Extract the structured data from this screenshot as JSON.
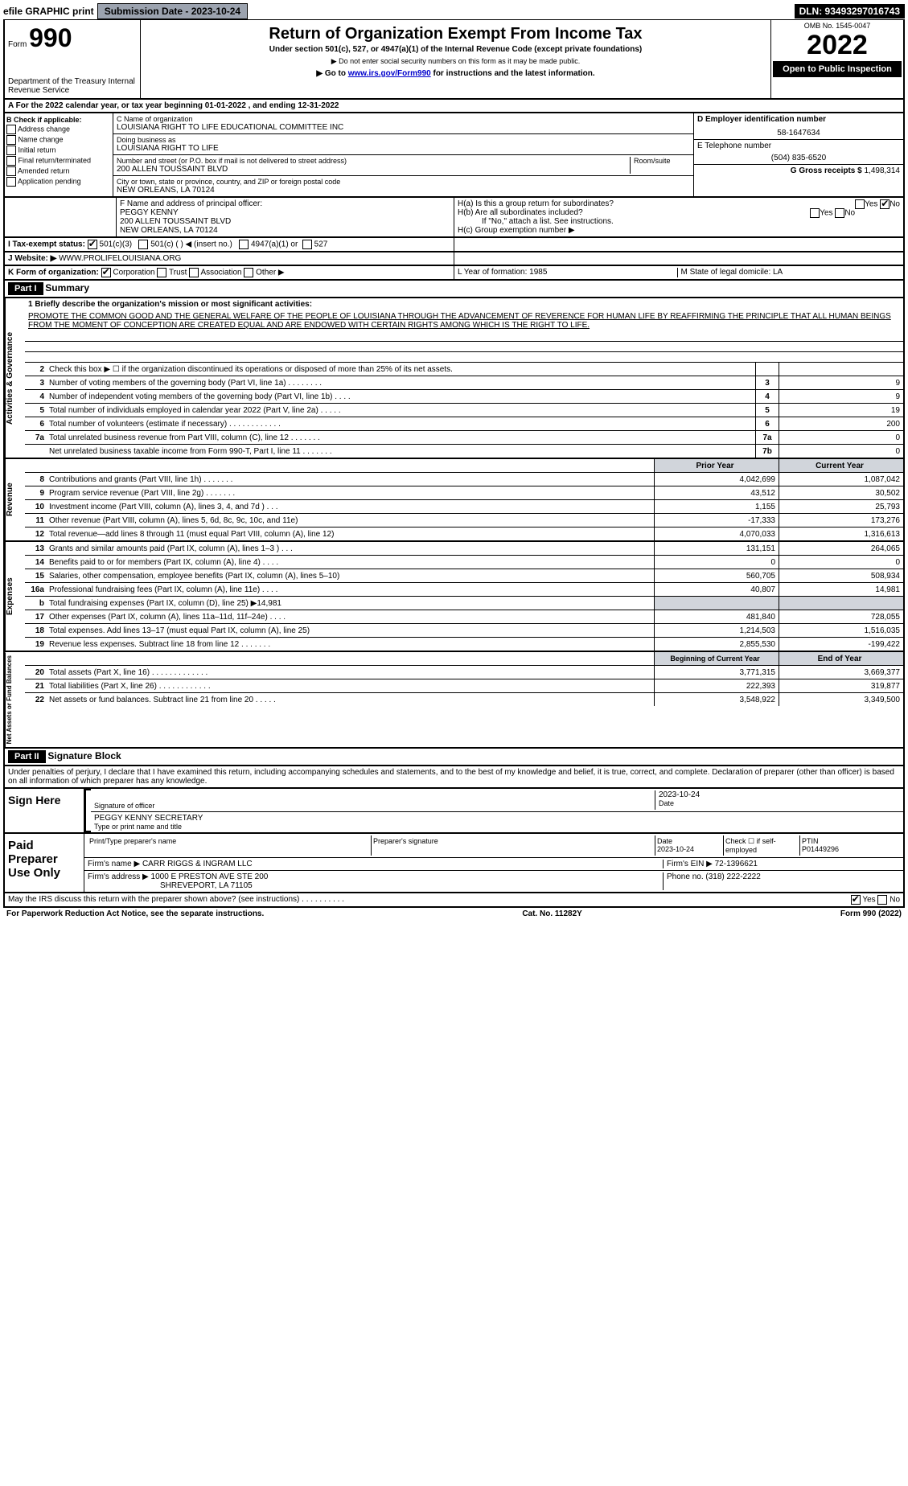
{
  "top": {
    "efile": "efile GRAPHIC print",
    "submission": "Submission Date - 2023-10-24",
    "dln": "DLN: 93493297016743"
  },
  "header": {
    "form": "Form",
    "form_num": "990",
    "dept": "Department of the Treasury Internal Revenue Service",
    "title": "Return of Organization Exempt From Income Tax",
    "subtitle": "Under section 501(c), 527, or 4947(a)(1) of the Internal Revenue Code (except private foundations)",
    "note1": "▶ Do not enter social security numbers on this form as it may be made public.",
    "note2_prefix": "▶ Go to ",
    "note2_link": "www.irs.gov/Form990",
    "note2_suffix": " for instructions and the latest information.",
    "omb": "OMB No. 1545-0047",
    "year": "2022",
    "open": "Open to Public Inspection"
  },
  "row_a": "A For the 2022 calendar year, or tax year beginning 01-01-2022   , and ending 12-31-2022",
  "col_b": {
    "title": "B Check if applicable:",
    "items": [
      "Address change",
      "Name change",
      "Initial return",
      "Final return/terminated",
      "Amended return",
      "Application pending"
    ]
  },
  "col_c": {
    "name_label": "C Name of organization",
    "name": "LOUISIANA RIGHT TO LIFE EDUCATIONAL COMMITTEE INC",
    "dba_label": "Doing business as",
    "dba": "LOUISIANA RIGHT TO LIFE",
    "addr_label": "Number and street (or P.O. box if mail is not delivered to street address)",
    "room_label": "Room/suite",
    "addr": "200 ALLEN TOUSSAINT BLVD",
    "city_label": "City or town, state or province, country, and ZIP or foreign postal code",
    "city": "NEW ORLEANS, LA  70124",
    "officer_label": "F  Name and address of principal officer:",
    "officer": "PEGGY KENNY\n200 ALLEN TOUSSAINT BLVD\nNEW ORLEANS, LA  70124"
  },
  "col_d": {
    "ein_label": "D Employer identification number",
    "ein": "58-1647634",
    "phone_label": "E Telephone number",
    "phone": "(504) 835-6520",
    "gross_label": "G Gross receipts $",
    "gross": "1,498,314"
  },
  "h": {
    "ha": "H(a)  Is this a group return for subordinates?",
    "hb": "H(b)  Are all subordinates included?",
    "hb_note": "If \"No,\" attach a list. See instructions.",
    "hc": "H(c)  Group exemption number ▶"
  },
  "i": {
    "label": "I   Tax-exempt status:",
    "opt1": "501(c)(3)",
    "opt2": "501(c) (  ) ◀ (insert no.)",
    "opt3": "4947(a)(1) or",
    "opt4": "527"
  },
  "j": {
    "label": "J   Website: ▶",
    "val": "WWW.PROLIFELOUISIANA.ORG"
  },
  "k": {
    "label": "K Form of organization:",
    "opts": [
      "Corporation",
      "Trust",
      "Association",
      "Other ▶"
    ],
    "l": "L Year of formation: 1985",
    "m": "M State of legal domicile: LA"
  },
  "part1": {
    "header": "Part I",
    "title": "Summary"
  },
  "mission": {
    "label": "1  Briefly describe the organization's mission or most significant activities:",
    "text": "PROMOTE THE COMMON GOOD AND THE GENERAL WELFARE OF THE PEOPLE OF LOUISIANA THROUGH THE ADVANCEMENT OF REVERENCE FOR HUMAN LIFE BY REAFFIRMING THE PRINCIPLE THAT ALL HUMAN BEINGS FROM THE MOMENT OF CONCEPTION ARE CREATED EQUAL AND ARE ENDOWED WITH CERTAIN RIGHTS AMONG WHICH IS THE RIGHT TO LIFE."
  },
  "sections": {
    "gov": {
      "label": "Activities & Governance",
      "lines": [
        {
          "n": "2",
          "d": "Check this box ▶ ☐  if the organization discontinued its operations or disposed of more than 25% of its net assets.",
          "box": "",
          "v": ""
        },
        {
          "n": "3",
          "d": "Number of voting members of the governing body (Part VI, line 1a)  .    .    .    .    .    .    .    .",
          "box": "3",
          "v": "9"
        },
        {
          "n": "4",
          "d": "Number of independent voting members of the governing body (Part VI, line 1b)   .    .    .    .",
          "box": "4",
          "v": "9"
        },
        {
          "n": "5",
          "d": "Total number of individuals employed in calendar year 2022 (Part V, line 2a)  .    .    .    .    .",
          "box": "5",
          "v": "19"
        },
        {
          "n": "6",
          "d": "Total number of volunteers (estimate if necessary)   .    .    .    .    .    .    .    .    .    .    .    .",
          "box": "6",
          "v": "200"
        },
        {
          "n": "7a",
          "d": "Total unrelated business revenue from Part VIII, column (C), line 12   .    .    .    .    .    .    .",
          "box": "7a",
          "v": "0"
        },
        {
          "n": "",
          "d": "Net unrelated business taxable income from Form 990-T, Part I, line 11   .    .    .    .    .    .    .",
          "box": "7b",
          "v": "0"
        }
      ]
    },
    "rev": {
      "label": "Revenue",
      "head_prior": "Prior Year",
      "head_curr": "Current Year",
      "lines": [
        {
          "n": "8",
          "d": "Contributions and grants (Part VIII, line 1h)   .    .    .    .    .    .    .",
          "p": "4,042,699",
          "c": "1,087,042"
        },
        {
          "n": "9",
          "d": "Program service revenue (Part VIII, line 2g)   .    .    .    .    .    .    .",
          "p": "43,512",
          "c": "30,502"
        },
        {
          "n": "10",
          "d": "Investment income (Part VIII, column (A), lines 3, 4, and 7d )   .    .    .",
          "p": "1,155",
          "c": "25,793"
        },
        {
          "n": "11",
          "d": "Other revenue (Part VIII, column (A), lines 5, 6d, 8c, 9c, 10c, and 11e)",
          "p": "-17,333",
          "c": "173,276"
        },
        {
          "n": "12",
          "d": "Total revenue—add lines 8 through 11 (must equal Part VIII, column (A), line 12)",
          "p": "4,070,033",
          "c": "1,316,613"
        }
      ]
    },
    "exp": {
      "label": "Expenses",
      "lines": [
        {
          "n": "13",
          "d": "Grants and similar amounts paid (Part IX, column (A), lines 1–3 )   .    .    .",
          "p": "131,151",
          "c": "264,065"
        },
        {
          "n": "14",
          "d": "Benefits paid to or for members (Part IX, column (A), line 4)   .    .    .    .",
          "p": "0",
          "c": "0"
        },
        {
          "n": "15",
          "d": "Salaries, other compensation, employee benefits (Part IX, column (A), lines 5–10)",
          "p": "560,705",
          "c": "508,934"
        },
        {
          "n": "16a",
          "d": "Professional fundraising fees (Part IX, column (A), line 11e)   .    .    .    .",
          "p": "40,807",
          "c": "14,981"
        },
        {
          "n": "b",
          "d": "Total fundraising expenses (Part IX, column (D), line 25) ▶14,981",
          "p": "",
          "c": "",
          "shade": true
        },
        {
          "n": "17",
          "d": "Other expenses (Part IX, column (A), lines 11a–11d, 11f–24e)   .    .    .    .",
          "p": "481,840",
          "c": "728,055"
        },
        {
          "n": "18",
          "d": "Total expenses. Add lines 13–17 (must equal Part IX, column (A), line 25)",
          "p": "1,214,503",
          "c": "1,516,035"
        },
        {
          "n": "19",
          "d": "Revenue less expenses. Subtract line 18 from line 12   .    .    .    .    .    .    .",
          "p": "2,855,530",
          "c": "-199,422"
        }
      ]
    },
    "net": {
      "label": "Net Assets or Fund Balances",
      "head_prior": "Beginning of Current Year",
      "head_curr": "End of Year",
      "lines": [
        {
          "n": "20",
          "d": "Total assets (Part X, line 16)   .    .    .    .    .    .    .    .    .    .    .    .    .",
          "p": "3,771,315",
          "c": "3,669,377"
        },
        {
          "n": "21",
          "d": "Total liabilities (Part X, line 26)   .    .    .    .    .    .    .    .    .    .    .    .",
          "p": "222,393",
          "c": "319,877"
        },
        {
          "n": "22",
          "d": "Net assets or fund balances. Subtract line 21 from line 20   .    .    .    .    .",
          "p": "3,548,922",
          "c": "3,349,500"
        }
      ]
    }
  },
  "part2": {
    "header": "Part II",
    "title": "Signature Block",
    "decl": "Under penalties of perjury, I declare that I have examined this return, including accompanying schedules and statements, and to the best of my knowledge and belief, it is true, correct, and complete. Declaration of preparer (other than officer) is based on all information of which preparer has any knowledge."
  },
  "sign": {
    "label": "Sign Here",
    "sig_label": "Signature of officer",
    "date": "2023-10-24",
    "date_label": "Date",
    "name": "PEGGY KENNY  SECRETARY",
    "name_label": "Type or print name and title"
  },
  "paid": {
    "label": "Paid Preparer Use Only",
    "h1": "Print/Type preparer's name",
    "h2": "Preparer's signature",
    "h3": "Date",
    "date": "2023-10-24",
    "h4": "Check ☐ if self-employed",
    "h5": "PTIN",
    "ptin": "P01449296",
    "firm_label": "Firm's name    ▶",
    "firm": "CARR RIGGS & INGRAM LLC",
    "ein_label": "Firm's EIN ▶",
    "ein": "72-1396621",
    "addr_label": "Firm's address ▶",
    "addr": "1000 E PRESTON AVE STE 200",
    "addr2": "SHREVEPORT, LA  71105",
    "phone_label": "Phone no.",
    "phone": "(318) 222-2222"
  },
  "discuss": "May the IRS discuss this return with the preparer shown above? (see instructions)   .    .    .    .    .    .    .    .    .    .",
  "footer": {
    "left": "For Paperwork Reduction Act Notice, see the separate instructions.",
    "mid": "Cat. No. 11282Y",
    "right": "Form 990 (2022)"
  }
}
